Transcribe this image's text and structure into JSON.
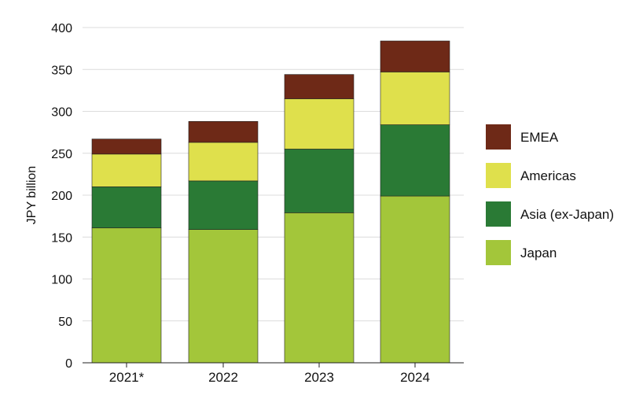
{
  "chart_data": {
    "type": "bar",
    "stacked": true,
    "title": "",
    "xlabel": "",
    "ylabel": "JPY billion",
    "ylim": [
      0,
      400
    ],
    "yticks": [
      0,
      50,
      100,
      150,
      200,
      250,
      300,
      350,
      400
    ],
    "grid": true,
    "legend_position": "right",
    "categories": [
      "2021*",
      "2022",
      "2023",
      "2024"
    ],
    "series": [
      {
        "name": "Japan",
        "color": "#a3c63a",
        "values": [
          161,
          159,
          179,
          199
        ]
      },
      {
        "name": "Asia (ex-Japan)",
        "color": "#2a7a35",
        "values": [
          49,
          58,
          76,
          85
        ]
      },
      {
        "name": "Americas",
        "color": "#dfe04c",
        "values": [
          39,
          46,
          60,
          63
        ]
      },
      {
        "name": "EMEA",
        "color": "#6e2917",
        "values": [
          18,
          25,
          29,
          37
        ]
      }
    ]
  }
}
